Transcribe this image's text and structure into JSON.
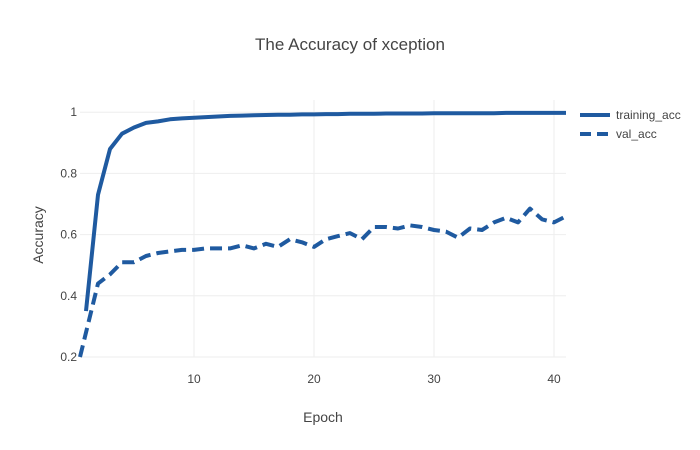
{
  "chart_data": {
    "type": "line",
    "title": "The Accuracy of xception",
    "xlabel": "Epoch",
    "ylabel": "Accuracy",
    "xlim": [
      0.5,
      41
    ],
    "ylim": [
      0.2,
      1.04
    ],
    "xticks": [
      10,
      20,
      30,
      40
    ],
    "yticks": [
      0.2,
      0.4,
      0.6,
      0.8,
      1
    ],
    "grid": true,
    "legend_position": "top-right",
    "series": [
      {
        "name": "training_acc",
        "color": "#1f5aa0",
        "dash": "solid",
        "x": [
          1,
          2,
          3,
          4,
          5,
          6,
          7,
          8,
          9,
          10,
          11,
          12,
          13,
          14,
          15,
          16,
          17,
          18,
          19,
          20,
          21,
          22,
          23,
          24,
          25,
          26,
          27,
          28,
          29,
          30,
          31,
          32,
          33,
          34,
          35,
          36,
          37,
          38,
          39,
          40,
          41
        ],
        "y": [
          0.35,
          0.73,
          0.88,
          0.93,
          0.95,
          0.965,
          0.97,
          0.977,
          0.98,
          0.982,
          0.984,
          0.986,
          0.988,
          0.989,
          0.99,
          0.991,
          0.992,
          0.992,
          0.993,
          0.993,
          0.994,
          0.994,
          0.995,
          0.995,
          0.995,
          0.996,
          0.996,
          0.996,
          0.996,
          0.997,
          0.997,
          0.997,
          0.997,
          0.997,
          0.997,
          0.998,
          0.998,
          0.998,
          0.998,
          0.998,
          0.998
        ]
      },
      {
        "name": "val_acc",
        "color": "#1f5aa0",
        "dash": "dashed",
        "x": [
          0.5,
          1,
          2,
          3,
          4,
          5,
          6,
          7,
          8,
          9,
          10,
          11,
          12,
          13,
          14,
          15,
          16,
          17,
          18,
          19,
          20,
          21,
          22,
          23,
          24,
          25,
          26,
          27,
          28,
          29,
          30,
          31,
          32,
          33,
          34,
          35,
          36,
          37,
          38,
          39,
          40,
          41
        ],
        "y": [
          0.2,
          0.28,
          0.44,
          0.47,
          0.51,
          0.51,
          0.53,
          0.54,
          0.545,
          0.55,
          0.55,
          0.555,
          0.555,
          0.555,
          0.565,
          0.555,
          0.57,
          0.56,
          0.585,
          0.575,
          0.56,
          0.585,
          0.595,
          0.605,
          0.585,
          0.625,
          0.625,
          0.62,
          0.63,
          0.625,
          0.615,
          0.61,
          0.59,
          0.62,
          0.615,
          0.64,
          0.655,
          0.64,
          0.685,
          0.65,
          0.64,
          0.66
        ]
      }
    ]
  }
}
